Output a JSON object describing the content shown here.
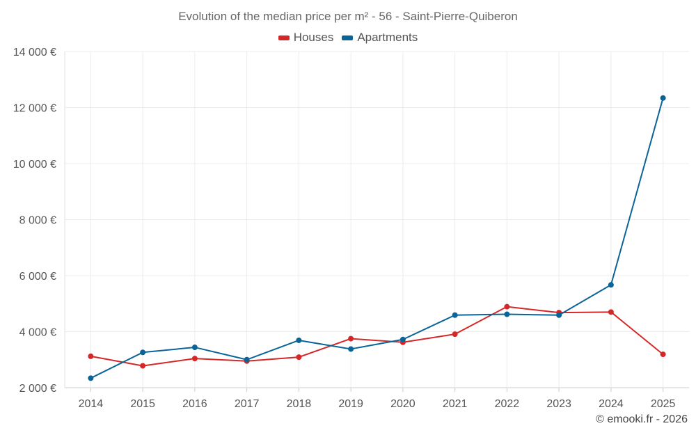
{
  "chart_data": {
    "type": "line",
    "title": "Evolution of the median price per m² - 56 - Saint-Pierre-Quiberon",
    "xlabel": "",
    "ylabel": "",
    "categories": [
      "2014",
      "2015",
      "2016",
      "2017",
      "2018",
      "2019",
      "2020",
      "2021",
      "2022",
      "2023",
      "2024",
      "2025"
    ],
    "ylim": [
      2000,
      14000
    ],
    "yticks": [
      2000,
      4000,
      6000,
      8000,
      10000,
      12000,
      14000
    ],
    "ytick_labels": [
      "2 000 €",
      "4 000 €",
      "6 000 €",
      "8 000 €",
      "10 000 €",
      "12 000 €",
      "14 000 €"
    ],
    "grid": true,
    "legend_position": "top-center",
    "series": [
      {
        "name": "Houses",
        "color": "#d62728",
        "values": [
          3120,
          2780,
          3040,
          2950,
          3090,
          3750,
          3620,
          3910,
          4890,
          4680,
          4700,
          3190
        ]
      },
      {
        "name": "Apartments",
        "color": "#0a6497",
        "values": [
          2340,
          3260,
          3440,
          3000,
          3690,
          3380,
          3720,
          4590,
          4620,
          4590,
          5670,
          12340
        ]
      }
    ]
  },
  "credit": "© emooki.fr - 2026"
}
